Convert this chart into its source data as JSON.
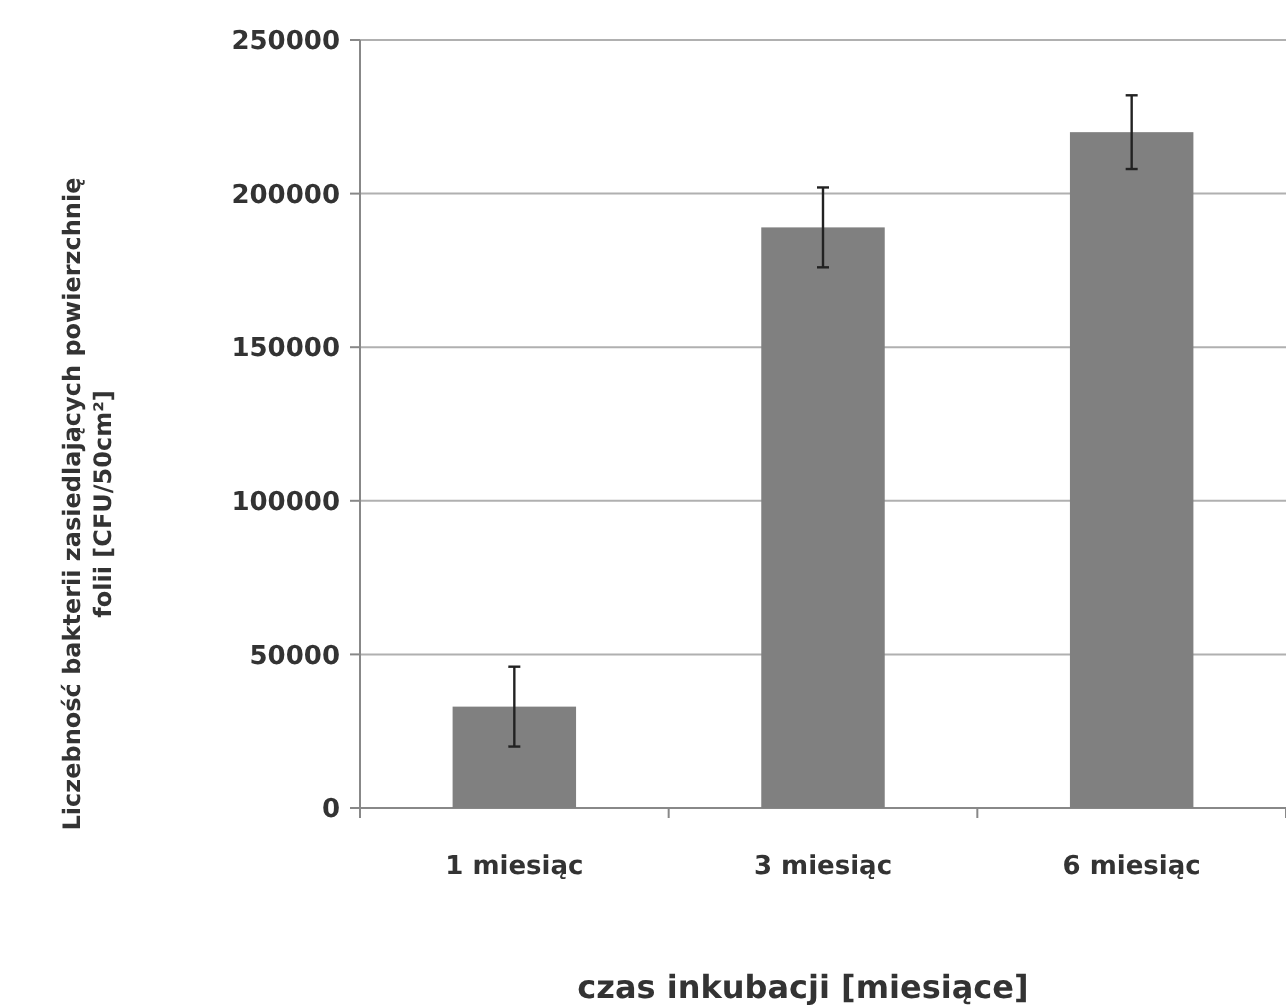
{
  "chart_data": {
    "type": "bar",
    "xlabel": "czas inkubacji [miesiące]",
    "ylabel": "Liczebność bakterii zasiedlających powierzchnię\nfolii [CFU/50cm²]",
    "categories": [
      "1 miesiąc",
      "3 miesiąc",
      "6 miesiąc"
    ],
    "values": [
      33000,
      189000,
      220000
    ],
    "errors": [
      13000,
      13000,
      12000
    ],
    "color": "#808080",
    "ylim": [
      0,
      250000
    ],
    "yticks": [
      0,
      50000,
      100000,
      150000,
      200000,
      250000
    ],
    "grid": "y"
  }
}
